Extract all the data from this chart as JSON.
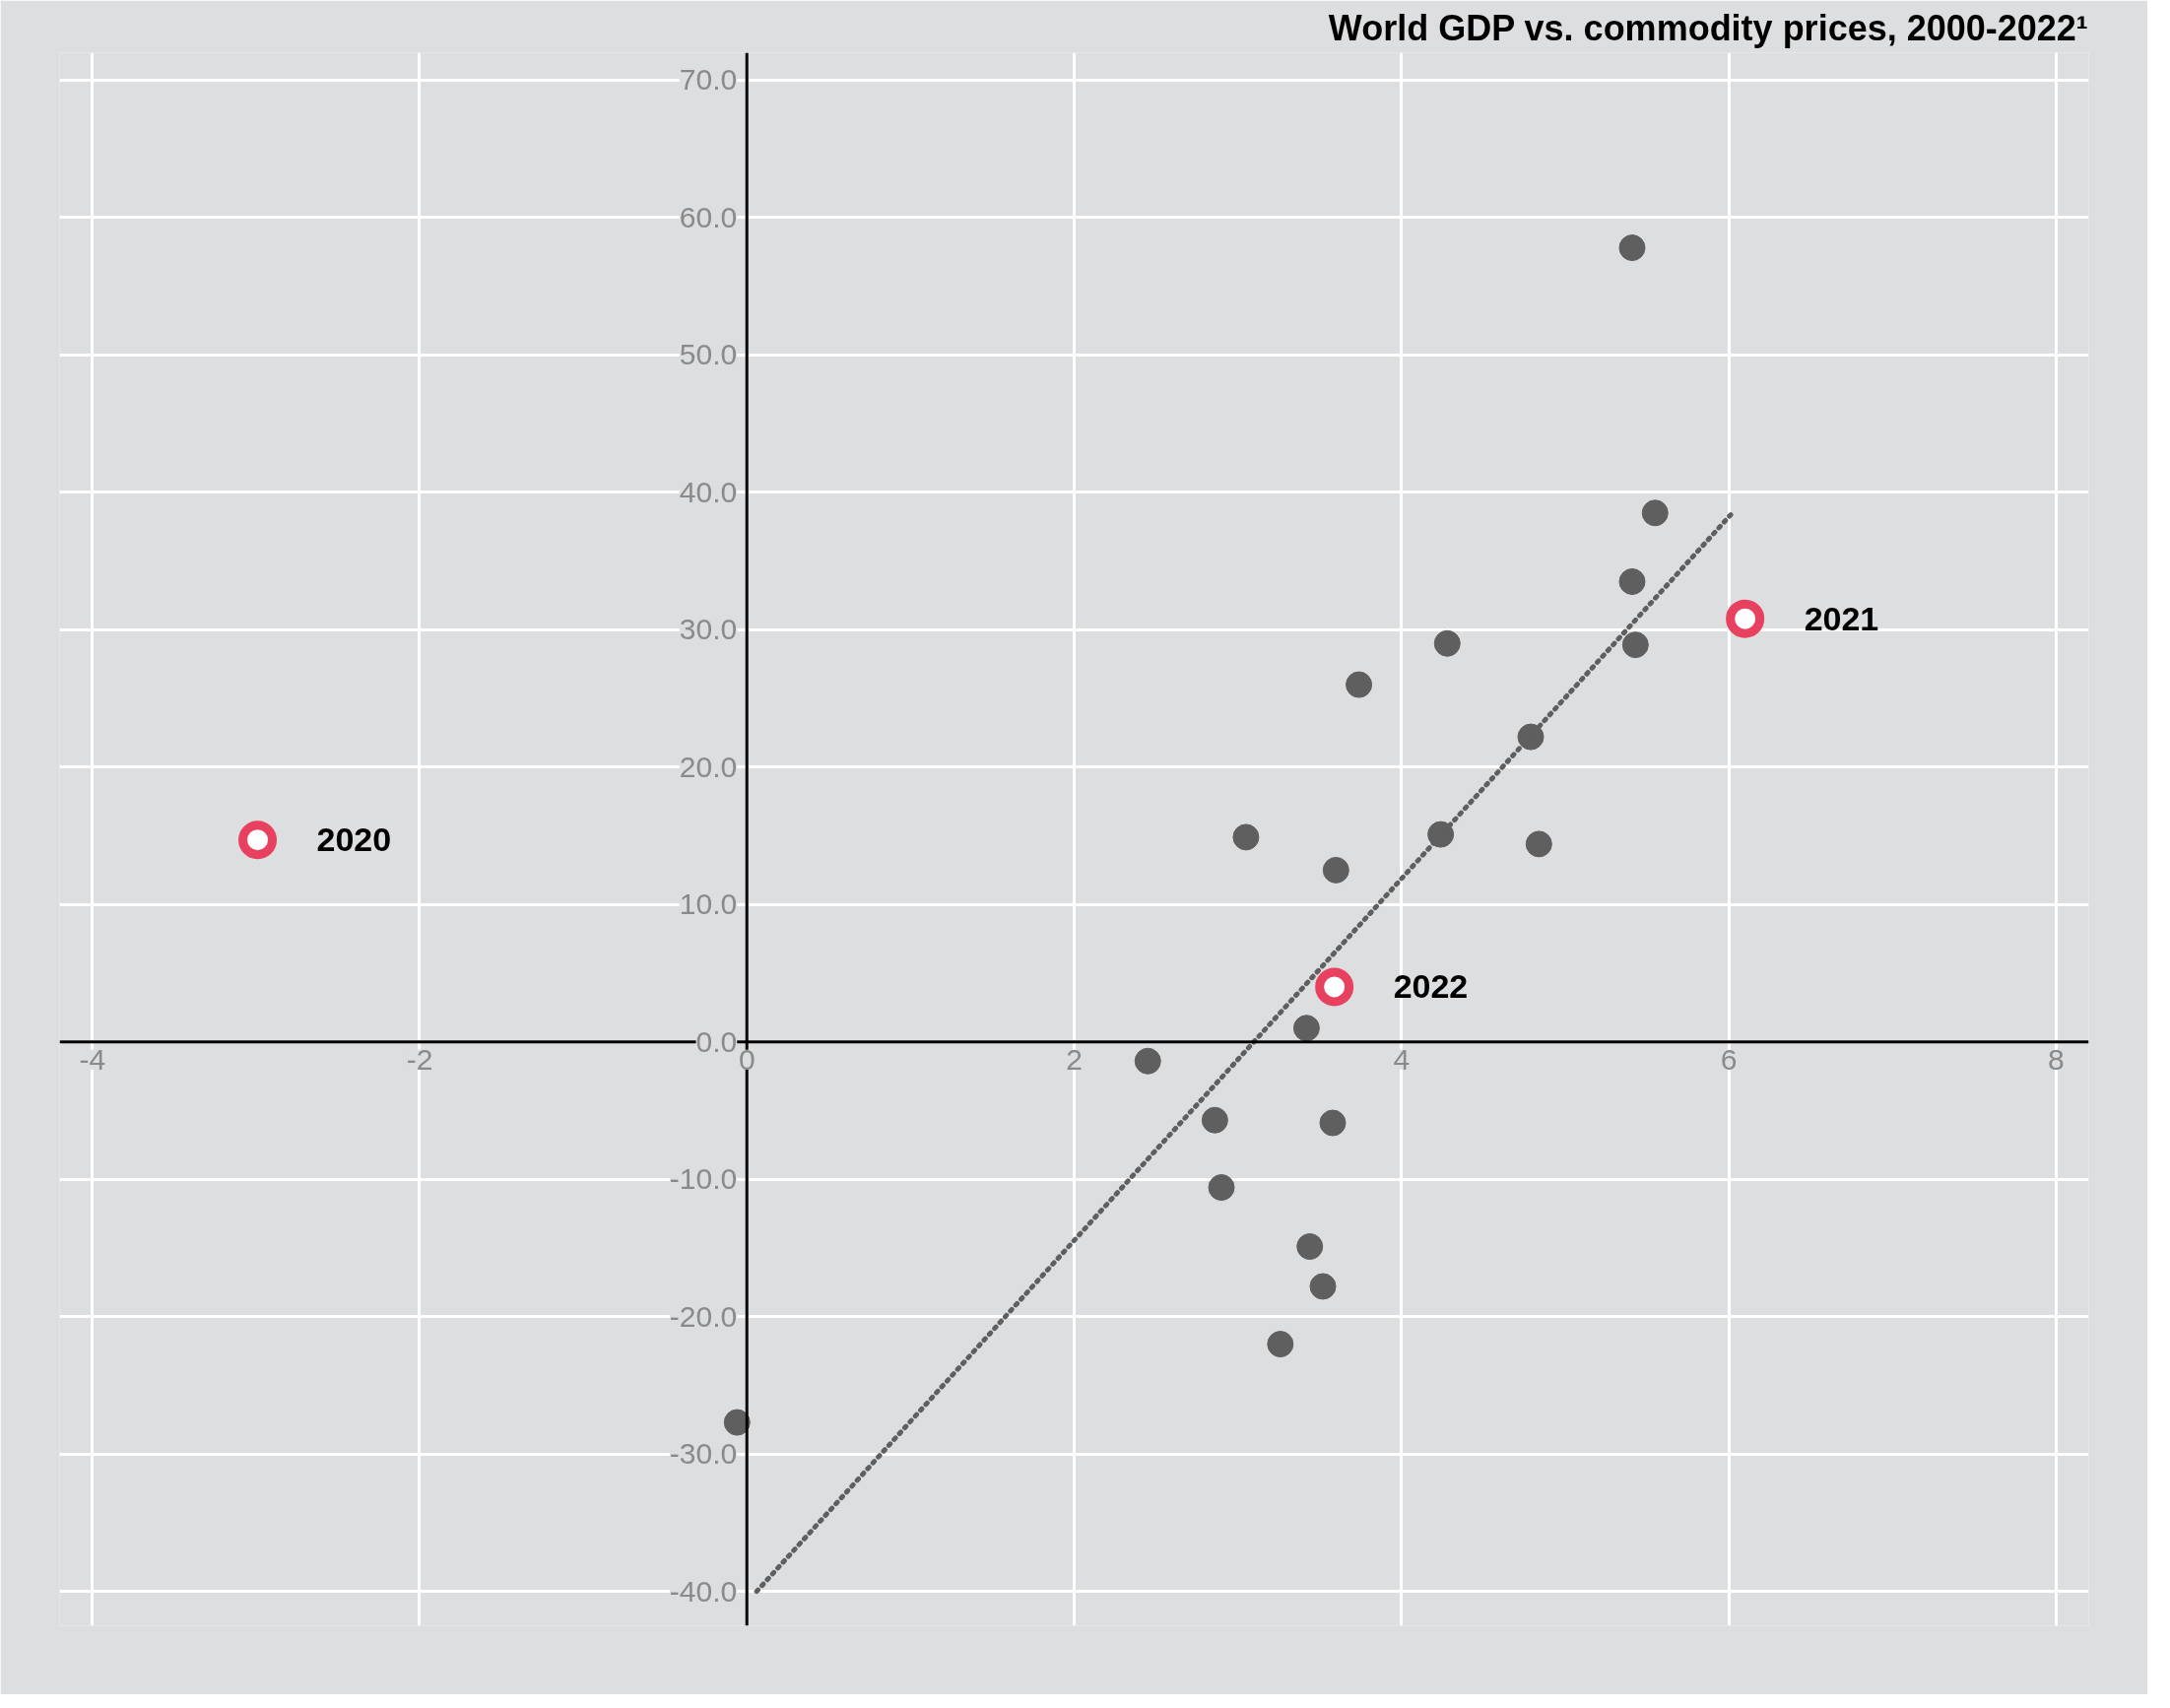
{
  "chart_data": {
    "type": "scatter",
    "title": "World GDP vs. commodity prices, 2000-2022¹",
    "xlim": [
      -4.2,
      8.2
    ],
    "ylim": [
      -42.5,
      72
    ],
    "xticks": [
      -4,
      -2,
      0,
      2,
      4,
      6,
      8
    ],
    "yticks": [
      {
        "value": -40,
        "label": "-40.0"
      },
      {
        "value": -30,
        "label": "-30.0"
      },
      {
        "value": -20,
        "label": "-20.0"
      },
      {
        "value": -10,
        "label": "-10.0"
      },
      {
        "value": 0,
        "label": "0.0"
      },
      {
        "value": 10,
        "label": "10.0"
      },
      {
        "value": 20,
        "label": "20.0"
      },
      {
        "value": 30,
        "label": "30.0"
      },
      {
        "value": 40,
        "label": "40.0"
      },
      {
        "value": 50,
        "label": "50.0"
      },
      {
        "value": 60,
        "label": "60.0"
      },
      {
        "value": 70,
        "label": "70.0"
      }
    ],
    "grid": true,
    "series": [
      {
        "marker": "circle",
        "color": "#5f5f5f",
        "x": [
          5.41,
          5.55,
          5.41,
          5.43,
          4.28,
          3.74,
          4.79,
          4.24,
          4.84,
          3.05,
          3.6,
          3.42,
          2.45,
          2.86,
          3.58,
          2.9,
          3.44,
          3.52,
          3.26,
          -0.06
        ],
        "values": [
          57.8,
          38.5,
          33.5,
          28.9,
          29.0,
          26.0,
          22.2,
          15.1,
          14.4,
          14.9,
          12.5,
          1.0,
          -1.4,
          -5.7,
          -5.9,
          -10.6,
          -14.9,
          -17.8,
          -22.0,
          -27.7
        ]
      },
      {
        "marker": "circle",
        "color": "#e8405f",
        "x": [
          -2.99,
          6.1,
          3.59
        ],
        "values": [
          14.7,
          30.8,
          4.0
        ]
      },
      {
        "type": "line",
        "line_style": "dotted",
        "color": "#5f5f5f",
        "x": [
          0.06,
          6.03
        ],
        "values": [
          -40,
          38.6
        ]
      }
    ],
    "annotations": [
      {
        "text": "2020",
        "x": -2.99,
        "y": 14.7
      },
      {
        "text": "2021",
        "x": 6.1,
        "y": 30.8
      },
      {
        "text": "2022",
        "x": 3.59,
        "y": 4.0
      }
    ]
  }
}
